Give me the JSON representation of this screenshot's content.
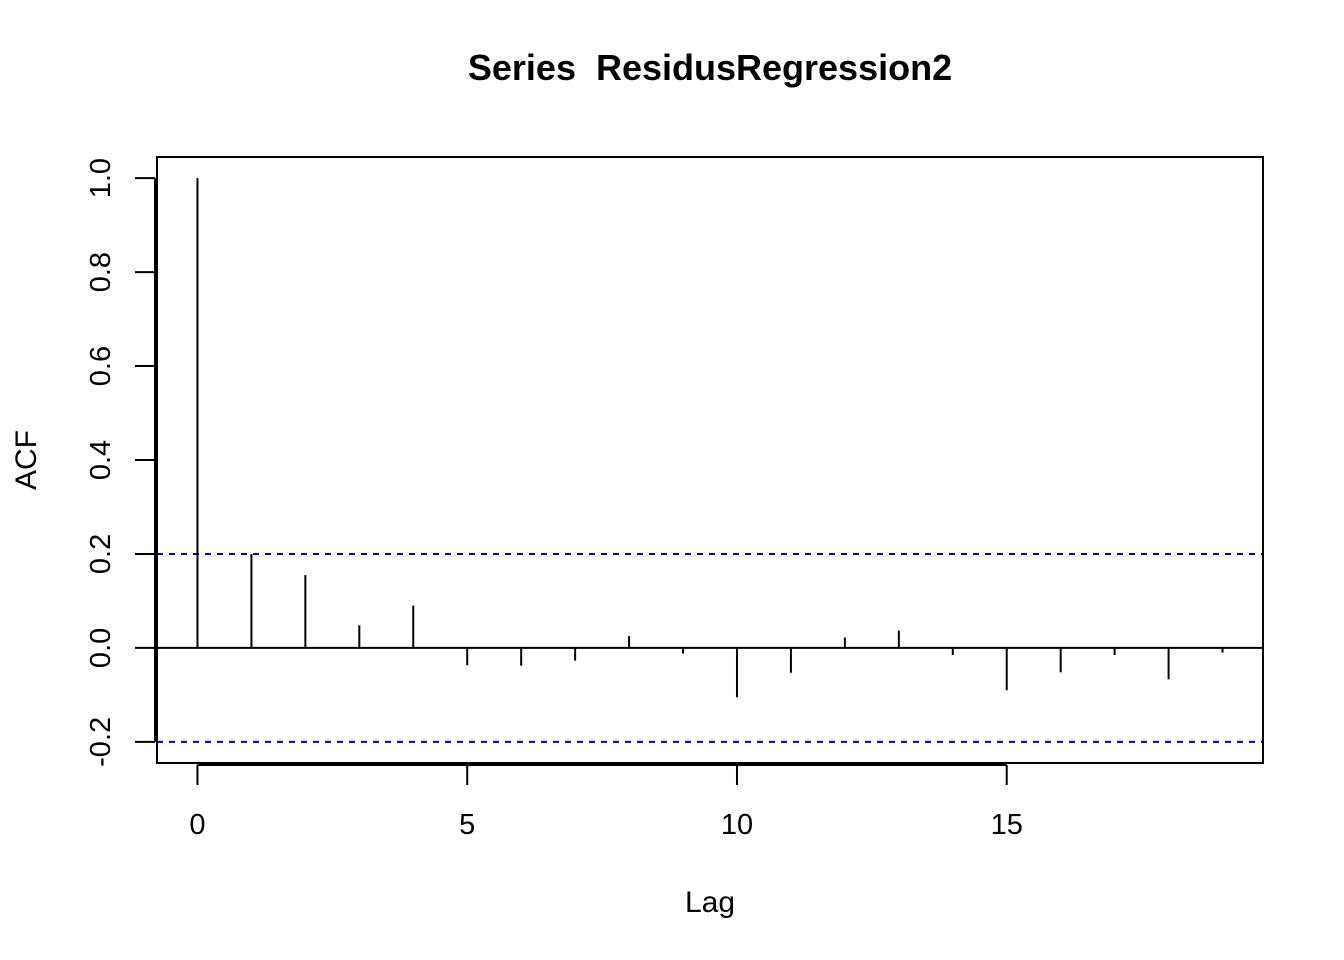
{
  "chart_data": {
    "type": "bar",
    "subtype": "acf-lollipop",
    "title": "Series  ResidusRegression2",
    "xlabel": "Lag",
    "ylabel": "ACF",
    "x": [
      0,
      1,
      2,
      3,
      4,
      5,
      6,
      7,
      8,
      9,
      10,
      11,
      12,
      13,
      14,
      15,
      16,
      17,
      18,
      19
    ],
    "values": [
      1.0,
      0.2,
      0.155,
      0.048,
      0.09,
      -0.037,
      -0.038,
      -0.027,
      0.025,
      -0.012,
      -0.105,
      -0.053,
      0.022,
      0.037,
      -0.015,
      -0.09,
      -0.052,
      -0.015,
      -0.067,
      -0.01
    ],
    "confidence_bounds": [
      0.2,
      -0.2
    ],
    "xlim": [
      -0.75,
      19.75
    ],
    "ylim": [
      -0.245,
      1.045
    ],
    "x_ticks": [
      0,
      5,
      10,
      15
    ],
    "x_tick_labels": [
      "0",
      "5",
      "10",
      "15"
    ],
    "y_ticks": [
      -0.2,
      0.0,
      0.2,
      0.4,
      0.6,
      0.8,
      1.0
    ],
    "y_tick_labels": [
      "-0.2",
      "0.0",
      "0.2",
      "0.4",
      "0.6",
      "0.8",
      "1.0"
    ],
    "grid": false,
    "legend": "none",
    "colors": {
      "spike": "#000000",
      "zero_line": "#000000",
      "confidence_line": "#0000cc",
      "axes": "#000000",
      "background": "#ffffff"
    }
  }
}
